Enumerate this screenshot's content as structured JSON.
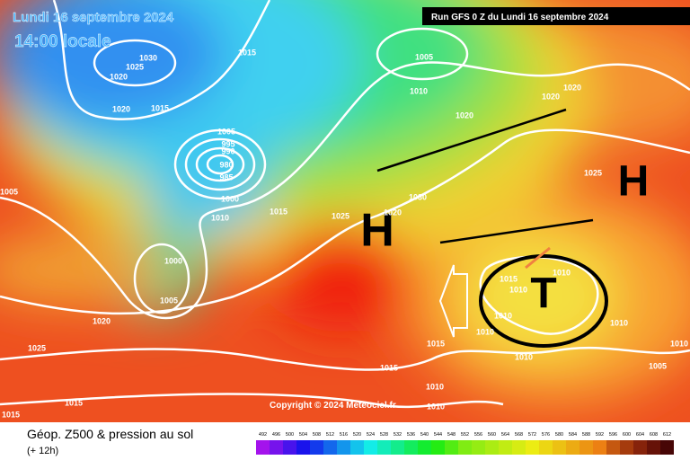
{
  "header": {
    "date": "Lundi 16 septembre 2024",
    "local_time": "14:00 locale",
    "run": "Run GFS 0 Z du Lundi 16 septembre 2024"
  },
  "copyright": "Copyright © 2024 Meteociel.fr",
  "legend": {
    "title": "Géop. Z500 & pression au sol",
    "lead": "(+ 12h)",
    "scale": [
      492,
      496,
      500,
      504,
      508,
      512,
      516,
      520,
      524,
      528,
      532,
      536,
      540,
      544,
      548,
      552,
      556,
      560,
      564,
      568,
      572,
      576,
      580,
      584,
      588,
      592,
      596,
      600,
      604,
      608,
      612
    ]
  },
  "systems": [
    "H",
    "H",
    "T"
  ],
  "isobar_labels": [
    1030,
    1025,
    1020,
    1015,
    1020,
    1015,
    1005,
    1010,
    1020,
    1020,
    1020,
    1005,
    995,
    990,
    980,
    985,
    1000,
    1010,
    1015,
    1005,
    1030,
    1025,
    1020,
    1025,
    1000,
    1005,
    1020,
    1025,
    1015,
    1010,
    1010,
    1010,
    1010,
    1010,
    1010,
    1015,
    1015,
    1010,
    1010,
    1005,
    1015,
    1015,
    1010
  ]
}
